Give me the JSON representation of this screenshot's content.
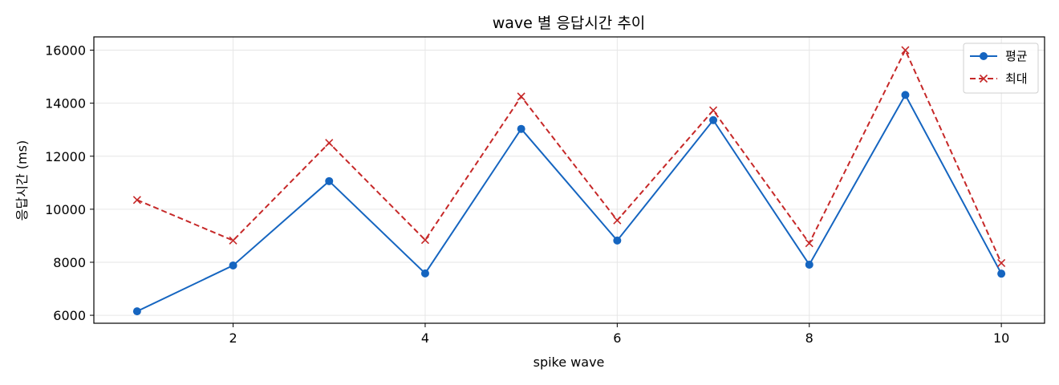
{
  "chart_data": {
    "type": "line",
    "title": "wave 별 응답시간 추이",
    "xlabel": "spike wave",
    "ylabel": "응답시간 (ms)",
    "x": [
      1,
      2,
      3,
      4,
      5,
      6,
      7,
      8,
      9,
      10
    ],
    "xlim": [
      0.55,
      10.45
    ],
    "ylim": [
      5700,
      16500
    ],
    "xticks": [
      2,
      4,
      6,
      8,
      10
    ],
    "yticks": [
      6000,
      8000,
      10000,
      12000,
      14000,
      16000
    ],
    "grid": true,
    "legend_position": "top-right",
    "series": [
      {
        "name": "평균",
        "color": "#1565c0",
        "marker": "circle",
        "line_style": "solid",
        "values": [
          6150,
          7880,
          11060,
          7580,
          13030,
          8820,
          13360,
          7910,
          14310,
          7570
        ]
      },
      {
        "name": "최대",
        "color": "#c62828",
        "marker": "x",
        "line_style": "dashed",
        "values": [
          10350,
          8820,
          12500,
          8840,
          14250,
          9580,
          13730,
          8720,
          16000,
          7970
        ]
      }
    ]
  }
}
